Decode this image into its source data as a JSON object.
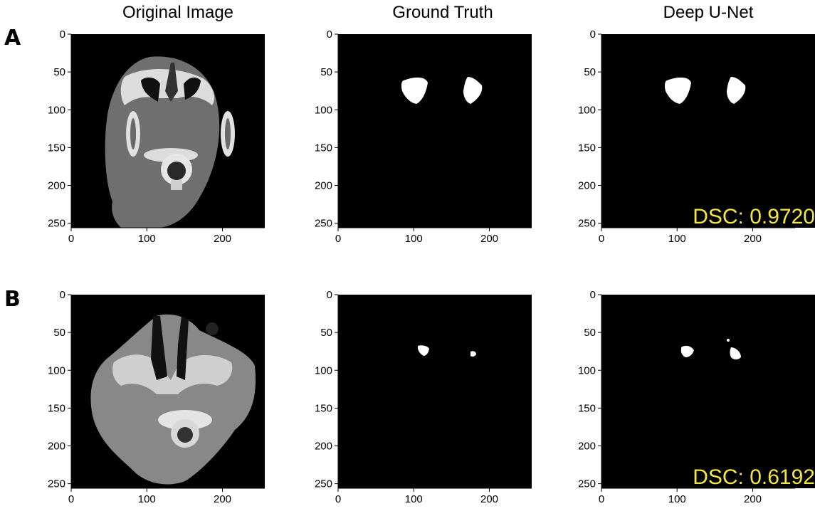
{
  "columns": {
    "original": "Original Image",
    "ground_truth": "Ground Truth",
    "deep_unet": "Deep U-Net"
  },
  "rows": {
    "a": {
      "label": "A",
      "dsc": "DSC: 0.9720"
    },
    "b": {
      "label": "B",
      "dsc": "DSC: 0.6192"
    }
  },
  "axes": {
    "y_ticks": [
      "0",
      "50",
      "100",
      "150",
      "200",
      "250"
    ],
    "x_ticks": [
      "0",
      "100",
      "200"
    ]
  },
  "colors": {
    "background": "#000000",
    "mask": "#ffffff",
    "dsc_text": "#f0e64a",
    "ct_tissue": "#6e6e6e",
    "ct_bone": "#e6e6e6"
  }
}
